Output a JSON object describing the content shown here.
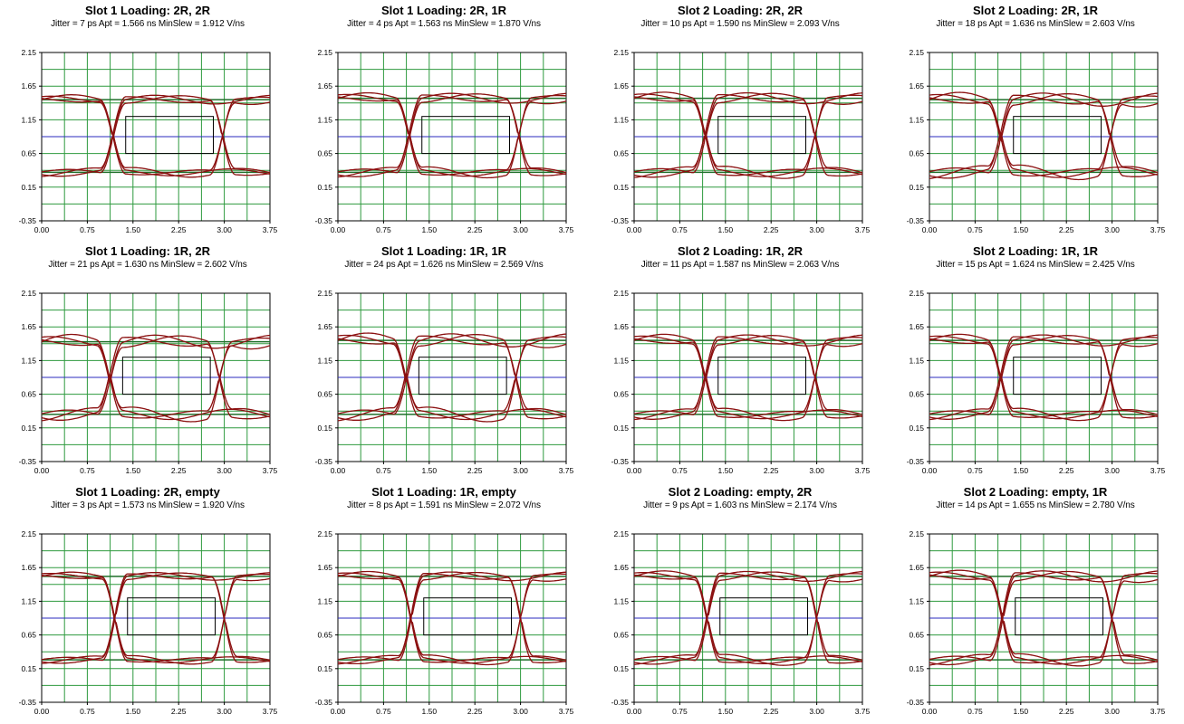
{
  "chart_data": [
    {
      "type": "line",
      "title": "Slot 1 Loading: 2R, 2R",
      "stats": "Jitter = 7 ps  Apt = 1.566 ns  MinSlew = 1.912 V/ns",
      "xlim": [
        0,
        3.75
      ],
      "ylim": [
        -0.35,
        2.15
      ],
      "x_ticks": [
        "0.00",
        "0.75",
        "1.50",
        "2.25",
        "3.00",
        "3.75"
      ],
      "y_ticks": [
        "2.15",
        "1.65",
        "1.15",
        "0.65",
        "0.15",
        "-0.35"
      ],
      "grid": true,
      "crossings": [
        1.17,
        2.97
      ],
      "high": 1.45,
      "low": 0.37,
      "vref": 0.9,
      "mask": {
        "x": [
          1.38,
          2.82
        ],
        "y": [
          0.65,
          1.2
        ]
      },
      "ripple": 0.08
    },
    {
      "type": "line",
      "title": "Slot 1 Loading: 2R, 1R",
      "stats": "Jitter = 4 ps  Apt = 1.563 ns  MinSlew = 1.870 V/ns",
      "xlim": [
        0,
        3.75
      ],
      "ylim": [
        -0.35,
        2.15
      ],
      "x_ticks": [
        "0.00",
        "0.75",
        "1.50",
        "2.25",
        "3.00",
        "3.75"
      ],
      "y_ticks": [
        "2.15",
        "1.65",
        "1.15",
        "0.65",
        "0.15",
        "-0.35"
      ],
      "grid": true,
      "crossings": [
        1.17,
        2.97
      ],
      "high": 1.47,
      "low": 0.37,
      "vref": 0.9,
      "mask": {
        "x": [
          1.38,
          2.82
        ],
        "y": [
          0.65,
          1.2
        ]
      },
      "ripple": 0.09
    },
    {
      "type": "line",
      "title": "Slot 2 Loading: 2R, 2R",
      "stats": "Jitter = 10 ps  Apt = 1.590 ns  MinSlew = 2.093 V/ns",
      "xlim": [
        0,
        3.75
      ],
      "ylim": [
        -0.35,
        2.15
      ],
      "x_ticks": [
        "0.00",
        "0.75",
        "1.50",
        "2.25",
        "3.00",
        "3.75"
      ],
      "y_ticks": [
        "2.15",
        "1.65",
        "1.15",
        "0.65",
        "0.15",
        "-0.35"
      ],
      "grid": true,
      "crossings": [
        1.17,
        2.97
      ],
      "high": 1.47,
      "low": 0.37,
      "vref": 0.9,
      "mask": {
        "x": [
          1.38,
          2.82
        ],
        "y": [
          0.65,
          1.2
        ]
      },
      "ripple": 0.1
    },
    {
      "type": "line",
      "title": "Slot 2 Loading: 2R, 1R",
      "stats": "Jitter = 18 ps  Apt = 1.636 ns  MinSlew = 2.603 V/ns",
      "xlim": [
        0,
        3.75
      ],
      "ylim": [
        -0.35,
        2.15
      ],
      "x_ticks": [
        "0.00",
        "0.75",
        "1.50",
        "2.25",
        "3.00",
        "3.75"
      ],
      "y_ticks": [
        "2.15",
        "1.65",
        "1.15",
        "0.65",
        "0.15",
        "-0.35"
      ],
      "grid": true,
      "crossings": [
        1.17,
        2.97
      ],
      "high": 1.45,
      "low": 0.37,
      "vref": 0.9,
      "mask": {
        "x": [
          1.38,
          2.82
        ],
        "y": [
          0.65,
          1.2
        ]
      },
      "ripple": 0.12
    },
    {
      "type": "line",
      "title": "Slot 1 Loading: 1R, 2R",
      "stats": "Jitter = 21 ps  Apt = 1.630 ns  MinSlew = 2.602 V/ns",
      "xlim": [
        0,
        3.75
      ],
      "ylim": [
        -0.35,
        2.15
      ],
      "x_ticks": [
        "0.00",
        "0.75",
        "1.50",
        "2.25",
        "3.00",
        "3.75"
      ],
      "y_ticks": [
        "2.15",
        "1.65",
        "1.15",
        "0.65",
        "0.15",
        "-0.35"
      ],
      "grid": true,
      "crossings": [
        1.12,
        2.92
      ],
      "high": 1.43,
      "low": 0.35,
      "vref": 0.9,
      "mask": {
        "x": [
          1.33,
          2.77
        ],
        "y": [
          0.65,
          1.2
        ]
      },
      "ripple": 0.12
    },
    {
      "type": "line",
      "title": "Slot 1 Loading: 1R, 1R",
      "stats": "Jitter = 24 ps  Apt = 1.626 ns  MinSlew = 2.569 V/ns",
      "xlim": [
        0,
        3.75
      ],
      "ylim": [
        -0.35,
        2.15
      ],
      "x_ticks": [
        "0.00",
        "0.75",
        "1.50",
        "2.25",
        "3.00",
        "3.75"
      ],
      "y_ticks": [
        "2.15",
        "1.65",
        "1.15",
        "0.65",
        "0.15",
        "-0.35"
      ],
      "grid": true,
      "crossings": [
        1.12,
        2.92
      ],
      "high": 1.45,
      "low": 0.35,
      "vref": 0.9,
      "mask": {
        "x": [
          1.33,
          2.77
        ],
        "y": [
          0.65,
          1.2
        ]
      },
      "ripple": 0.12
    },
    {
      "type": "line",
      "title": "Slot 2 Loading: 1R, 2R",
      "stats": "Jitter = 11 ps  Apt = 1.587 ns  MinSlew = 2.063 V/ns",
      "xlim": [
        0,
        3.75
      ],
      "ylim": [
        -0.35,
        2.15
      ],
      "x_ticks": [
        "0.00",
        "0.75",
        "1.50",
        "2.25",
        "3.00",
        "3.75"
      ],
      "y_ticks": [
        "2.15",
        "1.65",
        "1.15",
        "0.65",
        "0.15",
        "-0.35"
      ],
      "grid": true,
      "crossings": [
        1.17,
        2.97
      ],
      "high": 1.45,
      "low": 0.35,
      "vref": 0.9,
      "mask": {
        "x": [
          1.38,
          2.82
        ],
        "y": [
          0.65,
          1.2
        ]
      },
      "ripple": 0.1
    },
    {
      "type": "line",
      "title": "Slot 2 Loading: 1R, 1R",
      "stats": "Jitter = 15 ps  Apt = 1.624 ns  MinSlew = 2.425 V/ns",
      "xlim": [
        0,
        3.75
      ],
      "ylim": [
        -0.35,
        2.15
      ],
      "x_ticks": [
        "0.00",
        "0.75",
        "1.50",
        "2.25",
        "3.00",
        "3.75"
      ],
      "y_ticks": [
        "2.15",
        "1.65",
        "1.15",
        "0.65",
        "0.15",
        "-0.35"
      ],
      "grid": true,
      "crossings": [
        1.17,
        2.97
      ],
      "high": 1.45,
      "low": 0.35,
      "vref": 0.9,
      "mask": {
        "x": [
          1.38,
          2.82
        ],
        "y": [
          0.65,
          1.2
        ]
      },
      "ripple": 0.1
    },
    {
      "type": "line",
      "title": "Slot 1 Loading: 2R, empty",
      "stats": "Jitter = 3 ps  Apt = 1.573 ns  MinSlew = 1.920 V/ns",
      "xlim": [
        0,
        3.75
      ],
      "ylim": [
        -0.35,
        2.15
      ],
      "x_ticks": [
        "0.00",
        "0.75",
        "1.50",
        "2.25",
        "3.00",
        "3.75"
      ],
      "y_ticks": [
        "2.15",
        "1.65",
        "1.15",
        "0.65",
        "0.15",
        "-0.35"
      ],
      "grid": true,
      "crossings": [
        1.2,
        3.0
      ],
      "high": 1.52,
      "low": 0.28,
      "vref": 0.9,
      "mask": {
        "x": [
          1.41,
          2.85
        ],
        "y": [
          0.65,
          1.2
        ]
      },
      "ripple": 0.07
    },
    {
      "type": "line",
      "title": "Slot 1 Loading: 1R, empty",
      "stats": "Jitter = 8 ps  Apt = 1.591 ns  MinSlew = 2.072 V/ns",
      "xlim": [
        0,
        3.75
      ],
      "ylim": [
        -0.35,
        2.15
      ],
      "x_ticks": [
        "0.00",
        "0.75",
        "1.50",
        "2.25",
        "3.00",
        "3.75"
      ],
      "y_ticks": [
        "2.15",
        "1.65",
        "1.15",
        "0.65",
        "0.15",
        "-0.35"
      ],
      "grid": true,
      "crossings": [
        1.2,
        3.0
      ],
      "high": 1.52,
      "low": 0.28,
      "vref": 0.9,
      "mask": {
        "x": [
          1.41,
          2.85
        ],
        "y": [
          0.65,
          1.2
        ]
      },
      "ripple": 0.08
    },
    {
      "type": "line",
      "title": "Slot 2 Loading: empty, 2R",
      "stats": "Jitter = 9 ps  Apt = 1.603 ns  MinSlew = 2.174 V/ns",
      "xlim": [
        0,
        3.75
      ],
      "ylim": [
        -0.35,
        2.15
      ],
      "x_ticks": [
        "0.00",
        "0.75",
        "1.50",
        "2.25",
        "3.00",
        "3.75"
      ],
      "y_ticks": [
        "2.15",
        "1.65",
        "1.15",
        "0.65",
        "0.15",
        "-0.35"
      ],
      "grid": true,
      "crossings": [
        1.2,
        3.0
      ],
      "high": 1.52,
      "low": 0.28,
      "vref": 0.9,
      "mask": {
        "x": [
          1.41,
          2.85
        ],
        "y": [
          0.65,
          1.2
        ]
      },
      "ripple": 0.09
    },
    {
      "type": "line",
      "title": "Slot 2 Loading: empty, 1R",
      "stats": "Jitter = 14 ps  Apt = 1.655 ns  MinSlew = 2.780 V/ns",
      "xlim": [
        0,
        3.75
      ],
      "ylim": [
        -0.35,
        2.15
      ],
      "x_ticks": [
        "0.00",
        "0.75",
        "1.50",
        "2.25",
        "3.00",
        "3.75"
      ],
      "y_ticks": [
        "2.15",
        "1.65",
        "1.15",
        "0.65",
        "0.15",
        "-0.35"
      ],
      "grid": true,
      "crossings": [
        1.2,
        3.0
      ],
      "high": 1.52,
      "low": 0.28,
      "vref": 0.9,
      "mask": {
        "x": [
          1.41,
          2.85
        ],
        "y": [
          0.65,
          1.2
        ]
      },
      "ripple": 0.1
    }
  ],
  "colors": {
    "grid": "#2e9a3e",
    "eye": "#8b1010",
    "vref": "#2b2bbf",
    "mask": "#000000",
    "axis": "#000000",
    "level": "#1f6f2a"
  }
}
